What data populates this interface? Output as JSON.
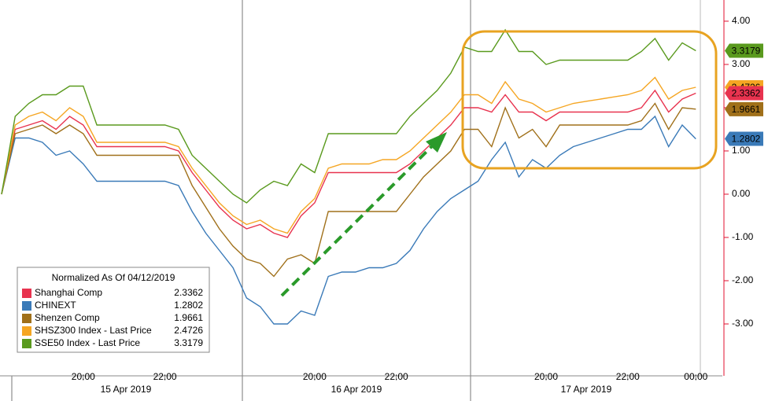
{
  "chart_data": {
    "type": "line",
    "categories": [
      null,
      null,
      null,
      null,
      null,
      null,
      "20:00",
      null,
      null,
      null,
      null,
      null,
      "22:00",
      null,
      null,
      null,
      null,
      null,
      null,
      null,
      null,
      null,
      null,
      "20:00",
      null,
      null,
      null,
      null,
      null,
      "22:00",
      null,
      null,
      null,
      null,
      null,
      null,
      null,
      null,
      null,
      null,
      "20:00",
      null,
      null,
      null,
      null,
      null,
      "22:00",
      null,
      null,
      null,
      null,
      "00:00"
    ],
    "date_labels": [
      "15 Apr 2019",
      "16 Apr 2019",
      "17 Apr 2019"
    ],
    "legend_title": "Normalized As Of 04/12/2019",
    "series": [
      {
        "name": "Shanghai Comp",
        "color": "#e8334f",
        "values": [
          0,
          1.5,
          1.6,
          1.7,
          1.5,
          1.8,
          1.6,
          1.1,
          1.1,
          1.1,
          1.1,
          1.1,
          1.1,
          1.0,
          0.5,
          0.1,
          -0.3,
          -0.6,
          -0.8,
          -0.7,
          -0.9,
          -1.0,
          -0.5,
          -0.2,
          0.5,
          0.5,
          0.5,
          0.5,
          0.5,
          0.5,
          0.7,
          1.0,
          1.3,
          1.6,
          2.0,
          2.0,
          1.9,
          2.3,
          1.9,
          1.9,
          1.7,
          1.9,
          1.9,
          1.9,
          1.9,
          1.9,
          1.9,
          2.0,
          2.4,
          1.9,
          2.2,
          2.3362
        ]
      },
      {
        "name": "CHINEXT",
        "color": "#3a7ab8",
        "values": [
          0,
          1.3,
          1.3,
          1.2,
          0.9,
          1.0,
          0.7,
          0.3,
          0.3,
          0.3,
          0.3,
          0.3,
          0.3,
          0.2,
          -0.4,
          -0.9,
          -1.3,
          -1.7,
          -2.4,
          -2.6,
          -3.0,
          -3.0,
          -2.7,
          -2.8,
          -1.9,
          -1.8,
          -1.8,
          -1.7,
          -1.7,
          -1.6,
          -1.3,
          -0.8,
          -0.4,
          -0.1,
          0.1,
          0.3,
          0.8,
          1.2,
          0.4,
          0.8,
          0.6,
          0.9,
          1.1,
          1.2,
          1.3,
          1.4,
          1.5,
          1.5,
          1.8,
          1.1,
          1.6,
          1.2802
        ]
      },
      {
        "name": "Shenzen Comp",
        "color": "#a0701a",
        "values": [
          0,
          1.4,
          1.5,
          1.6,
          1.4,
          1.6,
          1.4,
          0.9,
          0.9,
          0.9,
          0.9,
          0.9,
          0.9,
          0.9,
          0.2,
          -0.3,
          -0.8,
          -1.2,
          -1.5,
          -1.6,
          -1.9,
          -1.5,
          -1.4,
          -1.6,
          -0.4,
          -0.4,
          -0.4,
          -0.4,
          -0.4,
          -0.4,
          0.0,
          0.4,
          0.7,
          1.0,
          1.5,
          1.5,
          1.1,
          2.0,
          1.3,
          1.5,
          1.1,
          1.6,
          1.6,
          1.6,
          1.6,
          1.6,
          1.6,
          1.7,
          2.1,
          1.5,
          2.0,
          1.9661
        ]
      },
      {
        "name": "SHSZ300 Index - Last Price",
        "color": "#f5a623",
        "values": [
          0,
          1.6,
          1.8,
          1.9,
          1.7,
          2.0,
          1.8,
          1.2,
          1.2,
          1.2,
          1.2,
          1.2,
          1.2,
          1.1,
          0.6,
          0.2,
          -0.2,
          -0.5,
          -0.7,
          -0.6,
          -0.8,
          -0.9,
          -0.4,
          -0.1,
          0.6,
          0.7,
          0.7,
          0.7,
          0.8,
          0.8,
          1.0,
          1.3,
          1.6,
          1.9,
          2.3,
          2.3,
          2.1,
          2.6,
          2.2,
          2.1,
          1.9,
          2.0,
          2.1,
          2.15,
          2.2,
          2.25,
          2.3,
          2.4,
          2.7,
          2.2,
          2.4,
          2.4726
        ]
      },
      {
        "name": "SSE50 Index - Last Price",
        "color": "#5a9a1e",
        "values": [
          0,
          1.8,
          2.1,
          2.3,
          2.3,
          2.5,
          2.5,
          1.6,
          1.6,
          1.6,
          1.6,
          1.6,
          1.6,
          1.5,
          0.9,
          0.6,
          0.3,
          0.0,
          -0.2,
          0.1,
          0.3,
          0.2,
          0.7,
          0.5,
          1.4,
          1.4,
          1.4,
          1.4,
          1.4,
          1.4,
          1.8,
          2.1,
          2.4,
          2.8,
          3.4,
          3.3,
          3.3,
          3.8,
          3.3,
          3.3,
          3.0,
          3.1,
          3.1,
          3.1,
          3.1,
          3.1,
          3.1,
          3.3,
          3.6,
          3.1,
          3.5,
          3.3179
        ]
      }
    ],
    "ylim": [
      -4.2,
      4.49
    ],
    "yticks": [
      {
        "value": -3,
        "label": "-3.00"
      },
      {
        "value": -2,
        "label": "-2.00"
      },
      {
        "value": -1,
        "label": "-1.00"
      },
      {
        "value": 0,
        "label": "0.00"
      },
      {
        "value": 1,
        "label": "1.00"
      },
      {
        "value": 2,
        "label": "2.00"
      },
      {
        "value": 3,
        "label": "3.00"
      },
      {
        "value": 4,
        "label": "4.00"
      }
    ]
  }
}
